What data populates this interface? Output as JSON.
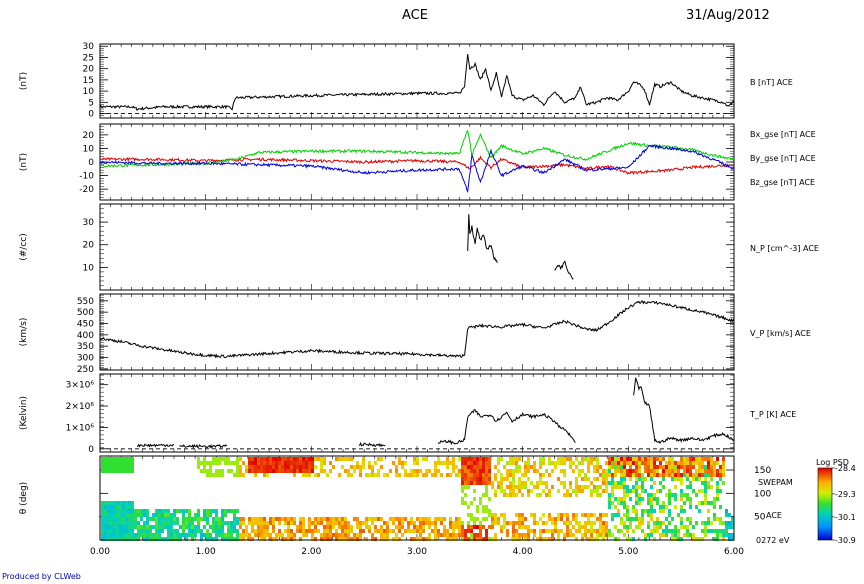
{
  "header": {
    "mission": "ACE",
    "date": "31/Aug/2012"
  },
  "credit": "Produced by CLWeb",
  "chart_data": [
    {
      "type": "line",
      "panel": "B",
      "ylabel": "(nT)",
      "ylim": [
        -2,
        31
      ],
      "yticks": [
        "0",
        "5",
        "10",
        "15",
        "20",
        "25",
        "30"
      ],
      "zero_line": true,
      "series": [
        {
          "name": "B [nT] ACE",
          "color": "#000000",
          "x": [
            0.0,
            0.3,
            0.35,
            0.6,
            1.2,
            1.25,
            1.28,
            2.0,
            3.0,
            3.4,
            3.45,
            3.48,
            3.5,
            3.55,
            3.6,
            3.65,
            3.7,
            3.75,
            3.8,
            3.85,
            3.9,
            4.0,
            4.1,
            4.2,
            4.3,
            4.4,
            4.5,
            4.55,
            4.6,
            4.7,
            4.8,
            4.9,
            5.0,
            5.05,
            5.1,
            5.15,
            5.2,
            5.25,
            5.3,
            5.4,
            5.5,
            5.6,
            5.7,
            5.8,
            5.9,
            5.95,
            6.0
          ],
          "y": [
            3,
            3,
            2,
            3,
            3,
            2,
            7,
            8,
            9,
            9,
            12,
            27,
            20,
            22,
            15,
            20,
            10,
            18,
            7,
            17,
            8,
            6,
            8,
            4,
            10,
            5,
            7,
            12,
            4,
            5,
            7,
            6,
            10,
            14,
            13,
            11,
            4,
            13,
            12,
            14,
            10,
            8,
            7,
            6,
            5,
            3,
            6
          ]
        }
      ]
    },
    {
      "type": "line",
      "panel": "B_gse",
      "ylabel": "(nT)",
      "ylim": [
        -28,
        28
      ],
      "yticks": [
        "-20",
        "-10",
        "0",
        "10",
        "20"
      ],
      "series": [
        {
          "name": "Bx_gse [nT] ACE",
          "color": "#e00000",
          "x": [
            0.0,
            0.5,
            1.0,
            1.5,
            2.0,
            2.5,
            3.0,
            3.4,
            3.5,
            3.6,
            3.7,
            3.8,
            4.0,
            4.2,
            4.4,
            4.6,
            4.8,
            5.0,
            5.2,
            5.4,
            5.6,
            5.8,
            6.0
          ],
          "y": [
            2,
            2,
            1,
            2,
            1,
            0,
            1,
            0,
            -5,
            3,
            -4,
            2,
            -4,
            -3,
            -2,
            -5,
            -3,
            -8,
            -7,
            -6,
            -4,
            -3,
            -2
          ]
        },
        {
          "name": "By_gse [nT] ACE",
          "color": "#00d000",
          "x": [
            0.0,
            0.5,
            1.0,
            1.3,
            1.5,
            2.0,
            2.5,
            3.0,
            3.4,
            3.48,
            3.52,
            3.6,
            3.7,
            3.8,
            4.0,
            4.2,
            4.4,
            4.6,
            4.8,
            5.0,
            5.2,
            5.4,
            5.6,
            5.8,
            6.0
          ],
          "y": [
            -3,
            -2,
            -1,
            2,
            7,
            8,
            8,
            7,
            6,
            24,
            5,
            20,
            3,
            12,
            6,
            10,
            5,
            2,
            8,
            14,
            12,
            11,
            9,
            5,
            2
          ]
        },
        {
          "name": "Bz_gse [nT] ACE",
          "color": "#0000e0",
          "x": [
            0.0,
            0.5,
            1.0,
            1.5,
            2.0,
            2.3,
            2.5,
            3.0,
            3.4,
            3.48,
            3.52,
            3.6,
            3.7,
            3.8,
            4.0,
            4.2,
            4.4,
            4.6,
            4.8,
            5.0,
            5.2,
            5.4,
            5.6,
            5.8,
            6.0
          ],
          "y": [
            0,
            -1,
            -1,
            -2,
            -3,
            -6,
            -8,
            -6,
            -5,
            -22,
            5,
            -15,
            8,
            -10,
            -3,
            -8,
            2,
            -6,
            -5,
            -4,
            12,
            10,
            8,
            2,
            -5
          ]
        }
      ]
    },
    {
      "type": "line",
      "panel": "N_P",
      "ylabel": "(#/cc)",
      "ylim": [
        0,
        38
      ],
      "yticks": [
        "10",
        "20",
        "30"
      ],
      "series": [
        {
          "name": "N_P [cm^-3] ACE",
          "color": "#000000",
          "segments": [
            {
              "x": [
                3.48,
                3.49,
                3.5,
                3.52,
                3.55,
                3.57,
                3.6,
                3.63,
                3.66,
                3.7,
                3.73,
                3.76
              ],
              "y": [
                17,
                34,
                25,
                28,
                20,
                27,
                22,
                24,
                18,
                20,
                14,
                12
              ]
            },
            {
              "x": [
                4.3,
                4.33,
                4.36,
                4.4,
                4.42,
                4.45,
                4.48
              ],
              "y": [
                9,
                11,
                10,
                12,
                9,
                7,
                5
              ]
            }
          ]
        }
      ]
    },
    {
      "type": "line",
      "panel": "V_P",
      "ylabel": "(km/s)",
      "ylim": [
        245,
        580
      ],
      "yticks": [
        "250",
        "300",
        "350",
        "400",
        "450",
        "500",
        "550"
      ],
      "series": [
        {
          "name": "V_P [km/s] ACE",
          "color": "#000000",
          "x": [
            0.0,
            0.2,
            0.4,
            0.6,
            0.8,
            1.0,
            1.2,
            1.5,
            2.0,
            2.5,
            3.0,
            3.4,
            3.45,
            3.48,
            3.6,
            3.8,
            4.0,
            4.2,
            4.4,
            4.6,
            4.7,
            4.8,
            5.0,
            5.1,
            5.3,
            5.5,
            5.7,
            5.9,
            6.0
          ],
          "y": [
            385,
            370,
            350,
            335,
            320,
            310,
            305,
            315,
            330,
            320,
            315,
            305,
            310,
            430,
            440,
            435,
            445,
            430,
            460,
            425,
            420,
            450,
            520,
            545,
            540,
            520,
            500,
            475,
            460
          ]
        }
      ]
    },
    {
      "type": "line",
      "panel": "T_P",
      "ylabel": "(Kelvin)",
      "ylim": [
        -150000,
        3500000
      ],
      "ytick_values": [
        0,
        1000000,
        2000000,
        3000000
      ],
      "yticks": [
        "0",
        "1×10⁶",
        "2×10⁶",
        "3×10⁶"
      ],
      "zero_line": true,
      "series": [
        {
          "name": "T_P [K] ACE",
          "color": "#000000",
          "segments": [
            {
              "x": [
                0.35,
                0.5,
                0.7
              ],
              "y": [
                170000,
                160000,
                180000
              ]
            },
            {
              "x": [
                0.75,
                0.9,
                1.1,
                1.2
              ],
              "y": [
                110000,
                120000,
                110000,
                140000
              ]
            },
            {
              "x": [
                2.45,
                2.6,
                2.7
              ],
              "y": [
                210000,
                190000,
                150000
              ]
            },
            {
              "x": [
                3.2,
                3.3,
                3.35,
                3.42,
                3.45,
                3.48,
                3.55,
                3.6,
                3.7,
                3.75,
                3.85,
                3.9,
                4.0,
                4.1,
                4.2,
                4.3,
                4.35,
                4.4,
                4.45,
                4.5
              ],
              "y": [
                300000,
                350000,
                250000,
                350000,
                420000,
                1500000,
                1800000,
                1500000,
                1600000,
                1300000,
                1700000,
                1300000,
                1600000,
                1500000,
                1600000,
                1300000,
                1000000,
                900000,
                600000,
                300000
              ]
            },
            {
              "x": [
                5.05,
                5.07,
                5.1,
                5.12,
                5.15,
                5.2,
                5.25,
                5.3,
                5.4,
                5.5,
                5.6,
                5.7,
                5.8,
                5.9,
                6.0
              ],
              "y": [
                2500000,
                3300000,
                2800000,
                2900000,
                2200000,
                2000000,
                400000,
                300000,
                500000,
                400000,
                500000,
                400000,
                600000,
                700000,
                400000
              ]
            }
          ]
        }
      ]
    },
    {
      "type": "heatmap",
      "panel": "SWEPAM",
      "ylabel": "θ (deg)",
      "ylim": [
        0,
        180
      ],
      "yticks": [
        "50",
        "100",
        "150"
      ],
      "side_labels": [
        "SWEPAM",
        "ACE",
        "0272 eV"
      ],
      "colorbar": {
        "title": "Log PSD",
        "ticks": [
          "-28.4",
          "-29.3",
          "-30.1",
          "-30.9"
        ],
        "range": [
          -30.9,
          -28.4
        ]
      },
      "xlabel": "",
      "xlim": [
        0,
        6
      ],
      "xticks": [
        "0.00",
        "1.00",
        "2.00",
        "3.00",
        "4.00",
        "5.00",
        "6.00"
      ]
    }
  ]
}
